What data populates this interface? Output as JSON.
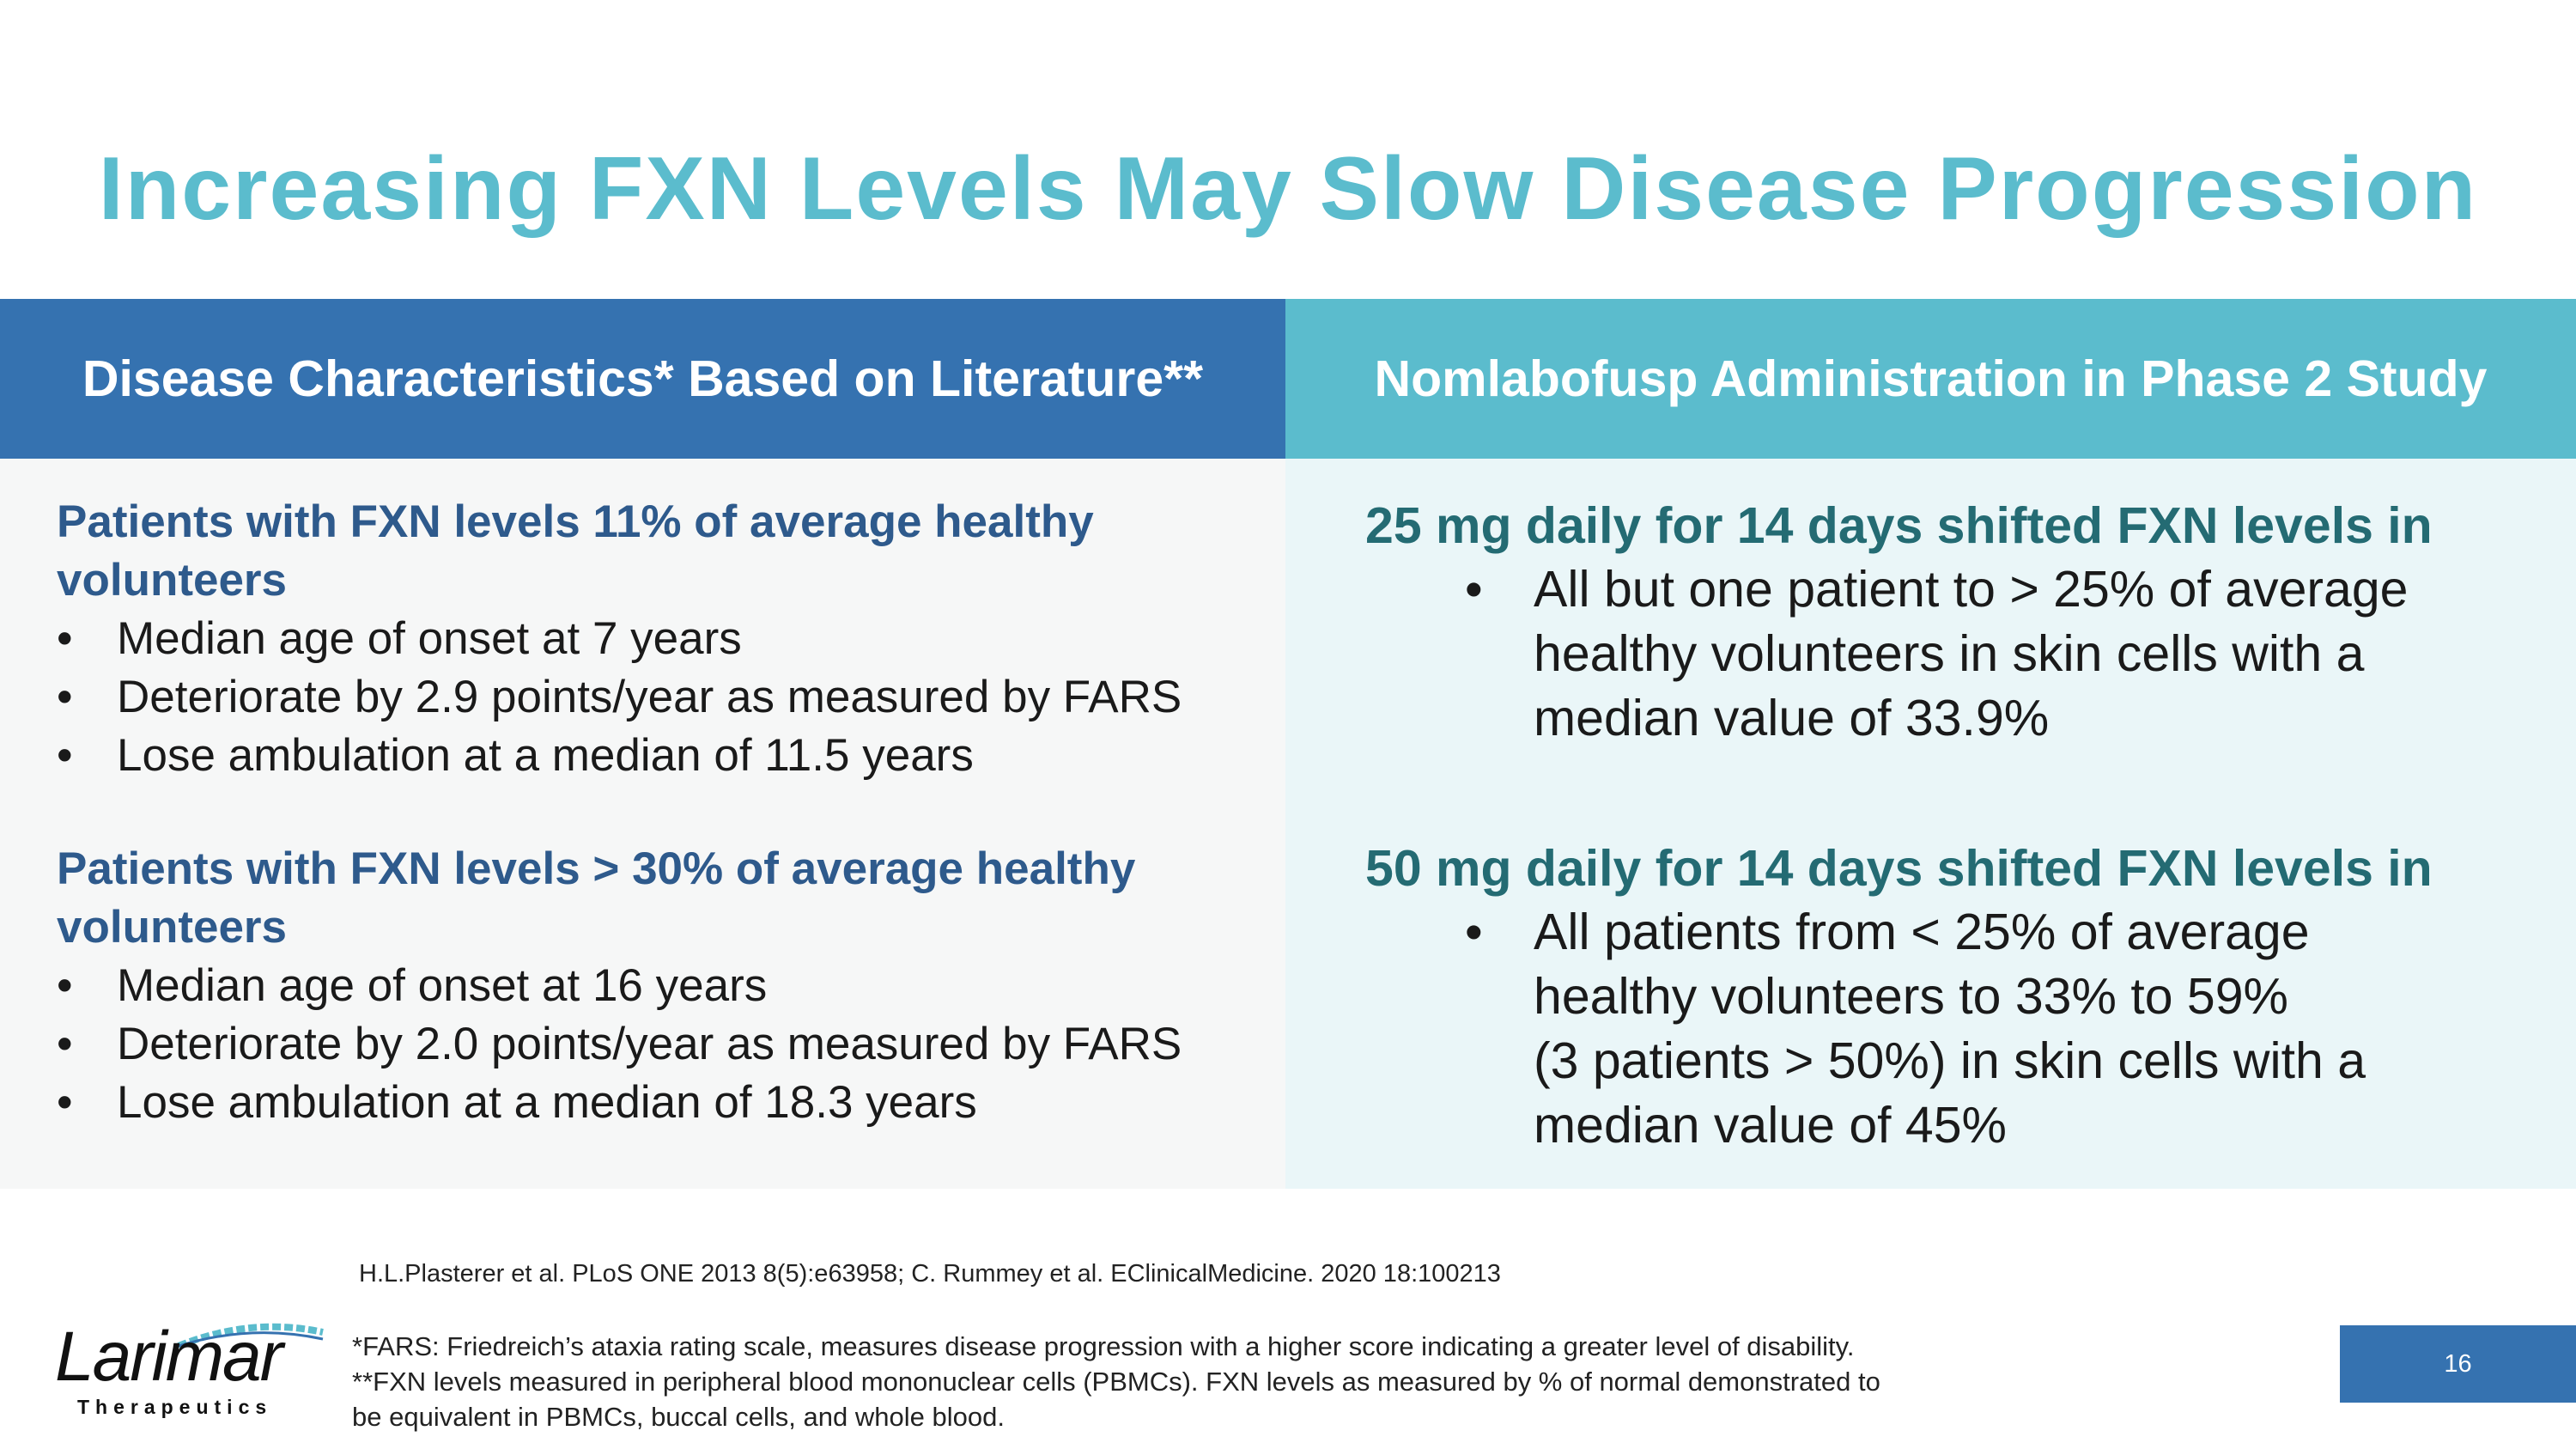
{
  "slide": {
    "title": "Increasing FXN Levels May Slow Disease Progression",
    "page_number": "16"
  },
  "left": {
    "header": "Disease Characteristics* Based on Literature**",
    "groups": [
      {
        "heading_lines": [
          "Patients with FXN levels 11% of average healthy",
          "volunteers"
        ],
        "bullets": [
          "Median age of onset at 7 years",
          "Deteriorate by 2.9 points/year as measured by FARS",
          "Lose ambulation at a median of 11.5 years"
        ]
      },
      {
        "heading_lines": [
          "Patients with FXN levels > 30% of average healthy",
          "volunteers"
        ],
        "bullets": [
          "Median age of onset at 16 years",
          "Deteriorate by 2.0 points/year as measured by FARS",
          "Lose ambulation at a median of 18.3 years"
        ]
      }
    ]
  },
  "right": {
    "header": "Nomlabofusp Administration in Phase 2 Study",
    "groups": [
      {
        "heading": "25 mg daily for 14 days shifted FXN levels in",
        "bullet_lines": [
          "All but one patient to > 25% of average",
          "healthy volunteers in skin cells with a",
          "median value of 33.9%"
        ]
      },
      {
        "heading": "50 mg daily for 14 days shifted FXN levels in",
        "bullet_lines": [
          "All patients from < 25% of average",
          "healthy volunteers to 33% to 59%",
          "(3 patients > 50%) in skin cells with a",
          "median value of 45%"
        ]
      }
    ]
  },
  "footer": {
    "citation": "H.L.Plasterer et al. PLoS ONE 2013 8(5):e63958; C. Rummey et al. EClinicalMedicine. 2020 18:100213",
    "footnote_lines": [
      "*FARS: Friedreich’s ataxia rating scale, measures disease progression with a higher score indicating a greater level of disability.",
      "**FXN levels measured in peripheral blood mononuclear cells (PBMCs). FXN levels as measured by % of normal demonstrated to",
      "be equivalent in PBMCs, buccal cells, and whole blood."
    ]
  },
  "logo": {
    "word": "Larimar",
    "subtitle": "Therapeutics"
  },
  "bullet_glyph": "•",
  "colors": {
    "title": "#5bbccd",
    "left_header_bg": "#3572b0",
    "right_header_bg": "#5bbccd",
    "left_heading": "#2e5a8c",
    "right_heading": "#246b73"
  }
}
